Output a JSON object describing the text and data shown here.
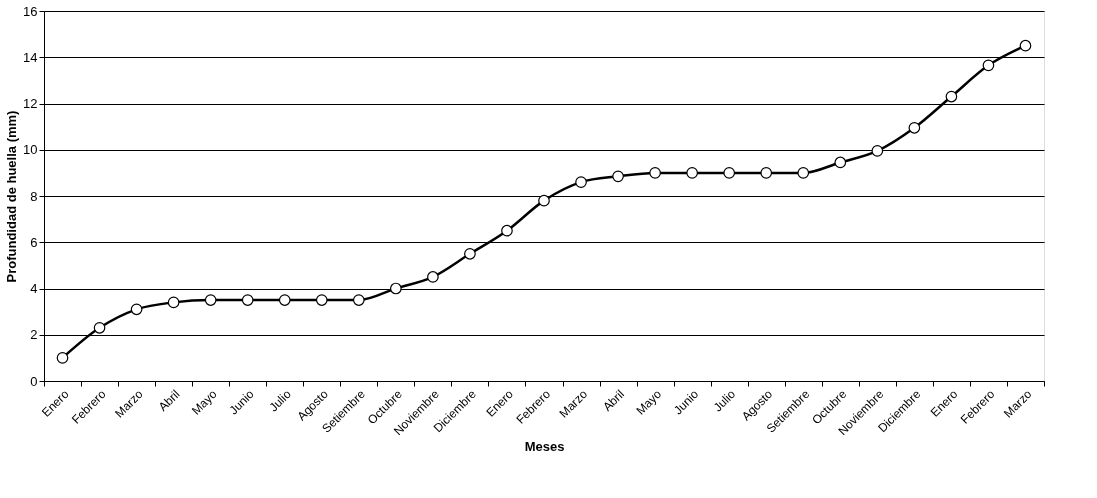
{
  "chart_data": {
    "type": "line",
    "xlabel": "Meses",
    "ylabel": "Profundidad de huella (mm)",
    "categories": [
      "Enero",
      "Febrero",
      "Marzo",
      "Abril",
      "Mayo",
      "Junio",
      "Julio",
      "Agosto",
      "Setiembre",
      "Octubre",
      "Noviembre",
      "Diciembre",
      "Enero",
      "Febrero",
      "Marzo",
      "Abril",
      "Mayo",
      "Junio",
      "Julio",
      "Agosto",
      "Setiembre",
      "Octubre",
      "Noviembre",
      "Diciembre",
      "Enero",
      "Febrero",
      "Marzo"
    ],
    "series": [
      {
        "color": "#000000",
        "values": [
          1.0,
          2.3,
          3.1,
          3.4,
          3.5,
          3.5,
          3.5,
          3.5,
          3.5,
          4.0,
          4.5,
          5.5,
          6.5,
          7.8,
          8.6,
          8.85,
          9.0,
          9.0,
          9.0,
          9.0,
          9.0,
          9.45,
          9.95,
          10.95,
          12.3,
          13.65,
          14.5
        ]
      }
    ],
    "ylim": [
      0,
      16
    ],
    "yticks": [
      0,
      2,
      4,
      6,
      8,
      10,
      12,
      14,
      16
    ],
    "grid": "y",
    "marker": "circle",
    "line_style": "solid"
  }
}
